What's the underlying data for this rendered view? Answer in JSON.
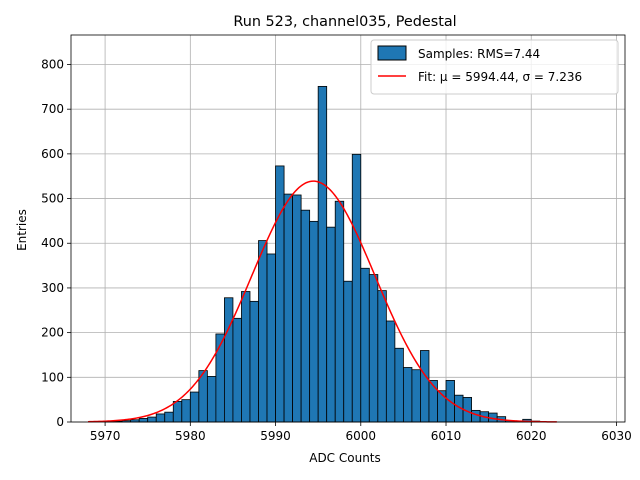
{
  "chart_data": {
    "type": "bar",
    "title": "Run 523, channel035, Pedestal",
    "xlabel": "ADC Counts",
    "ylabel": "Entries",
    "xlim": [
      5966,
      6031
    ],
    "ylim": [
      0,
      866
    ],
    "xticks": [
      5970,
      5980,
      5990,
      6000,
      6010,
      6020,
      6030
    ],
    "yticks": [
      0,
      100,
      200,
      300,
      400,
      500,
      600,
      700,
      800
    ],
    "grid": true,
    "legend_position": "top-right",
    "colors": {
      "bars": "#1f77b4",
      "bar_edge": "#000000",
      "fit": "#ff0000",
      "grid": "#b0b0b0"
    },
    "histogram": {
      "name": "Samples: RMS=7.44",
      "bin_width": 1,
      "bin_starts": [
        5968,
        5969,
        5970,
        5971,
        5972,
        5973,
        5974,
        5975,
        5976,
        5977,
        5978,
        5979,
        5980,
        5981,
        5982,
        5983,
        5984,
        5985,
        5986,
        5987,
        5988,
        5989,
        5990,
        5991,
        5992,
        5993,
        5994,
        5995,
        5996,
        5997,
        5998,
        5999,
        6000,
        6001,
        6002,
        6003,
        6004,
        6005,
        6006,
        6007,
        6008,
        6009,
        6010,
        6011,
        6012,
        6013,
        6014,
        6015,
        6016,
        6017,
        6018,
        6019,
        6020,
        6021,
        6022
      ],
      "counts": [
        0,
        0,
        1,
        2,
        3,
        5,
        8,
        11,
        18,
        22,
        46,
        50,
        67,
        115,
        102,
        197,
        278,
        232,
        292,
        270,
        406,
        376,
        573,
        510,
        508,
        474,
        449,
        751,
        436,
        494,
        315,
        599,
        344,
        330,
        294,
        226,
        165,
        122,
        117,
        160,
        93,
        70,
        93,
        60,
        55,
        26,
        23,
        20,
        12,
        3,
        2,
        6,
        2,
        0,
        0
      ]
    },
    "fit": {
      "name": "Fit: μ = 5994.44, σ = 7.236",
      "mu": 5994.44,
      "sigma": 7.236,
      "peak": 539,
      "x_range": [
        5968,
        6023
      ]
    }
  }
}
